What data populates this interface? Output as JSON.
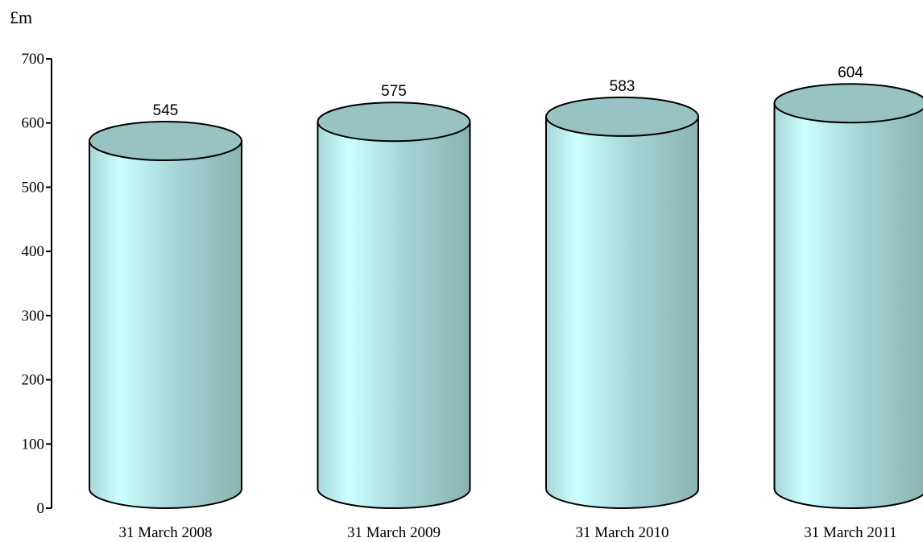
{
  "chart_data": {
    "type": "bar",
    "bar_style": "3d-cylinder",
    "ylabel": "£m",
    "categories": [
      "31 March 2008",
      "31 March 2009",
      "31 March 2010",
      "31 March 2011"
    ],
    "values": [
      545,
      575,
      583,
      604
    ],
    "data_labels": [
      "545",
      "575",
      "583",
      "604"
    ],
    "ylim": [
      0,
      700
    ],
    "yticks": [
      0,
      100,
      200,
      300,
      400,
      500,
      600,
      700
    ],
    "ytick_labels": [
      "0",
      "100",
      "200",
      "300",
      "400",
      "500",
      "600",
      "700"
    ],
    "grid": false,
    "legend": "none",
    "colors": {
      "cylinder_light": "#CCFFFF",
      "cylinder_mid": "#A7D6D6",
      "cylinder_dark": "#8AB2B2",
      "cylinder_top": "#99C2C2",
      "outline": "#000000"
    }
  }
}
